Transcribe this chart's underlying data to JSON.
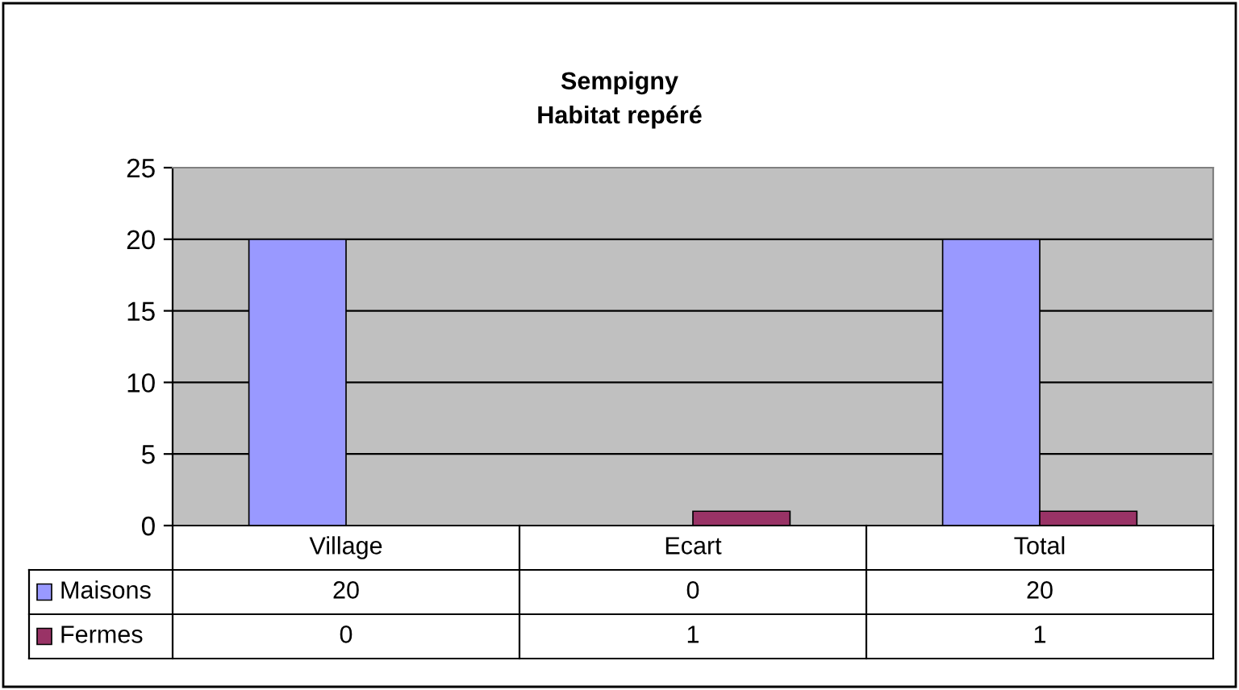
{
  "chart_data": {
    "type": "bar",
    "title": "Sempigny\nHabitat repéré",
    "categories": [
      "Village",
      "Ecart",
      "Total"
    ],
    "series": [
      {
        "name": "Maisons",
        "color": "#9999ff",
        "values": [
          20,
          0,
          20
        ]
      },
      {
        "name": "Fermes",
        "color": "#993366",
        "values": [
          0,
          1,
          1
        ]
      }
    ],
    "ylim": [
      0,
      25
    ],
    "yticks": [
      0,
      5,
      10,
      15,
      20,
      25
    ],
    "grid": "y",
    "legend": "left",
    "data_labels": true
  }
}
